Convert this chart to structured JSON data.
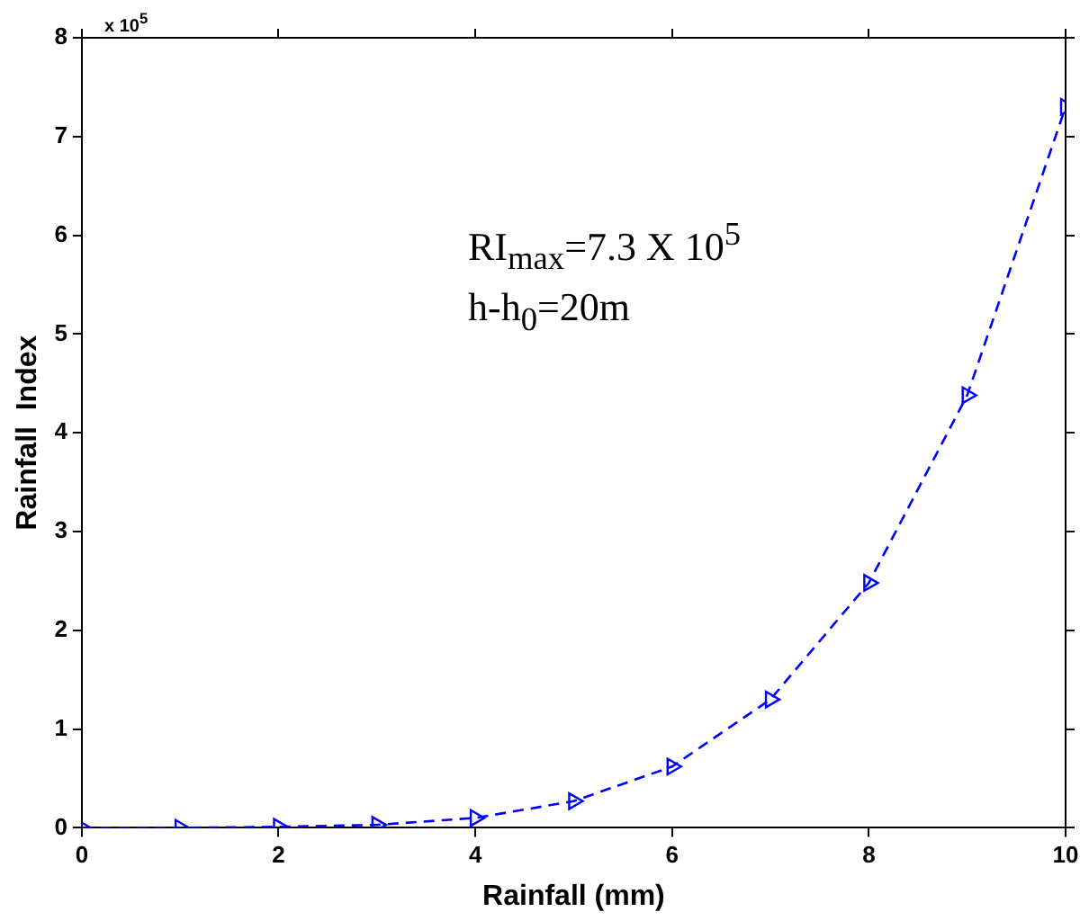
{
  "chart_data": {
    "type": "line",
    "xlabel": "Rainfall (mm)",
    "ylabel": "Rainfall  Index",
    "x": [
      0,
      1,
      2,
      3,
      4,
      5,
      6,
      7,
      8,
      9,
      10
    ],
    "series": [
      {
        "color": "#0000ff",
        "values": [
          0,
          0,
          0.01,
          0.03,
          0.1,
          0.27,
          0.62,
          1.3,
          2.48,
          4.38,
          7.3
        ]
      }
    ],
    "xlim": [
      0,
      10
    ],
    "xticks": [
      0,
      2,
      4,
      6,
      8,
      10
    ],
    "ylim": [
      0,
      8
    ],
    "yticks": [
      0,
      1,
      2,
      3,
      4,
      5,
      6,
      7,
      8
    ],
    "grid": false,
    "legend": false,
    "marker": "triangle",
    "line_style": "dashed",
    "annotations": [
      "x 10$^{5}$",
      "RI$_{max}$=7.3 X 10$^{5}$",
      "h-h$_{0}$=20m"
    ]
  }
}
